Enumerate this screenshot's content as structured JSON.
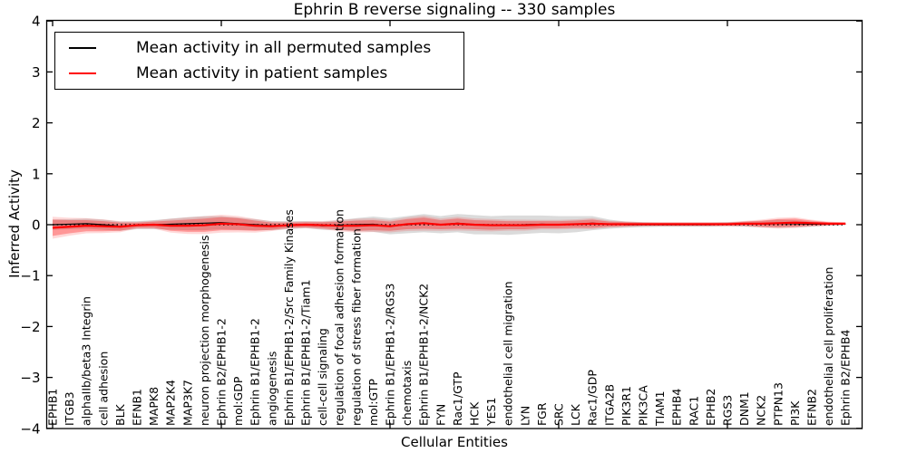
{
  "chart_data": {
    "type": "line",
    "title": "Ephrin B reverse signaling -- 330 samples",
    "xlabel": "Cellular Entities",
    "ylabel": "Inferred Activity",
    "ylim": [
      -4,
      4
    ],
    "ytick_values": [
      4,
      3,
      2,
      1,
      0,
      -1,
      -2,
      -3,
      -4
    ],
    "ytick_labels": [
      "4",
      "3",
      "2",
      "1",
      "0",
      "−1",
      "−2",
      "−3",
      "−4"
    ],
    "xtick_values": [
      0,
      10,
      20,
      30,
      40
    ],
    "grid": false,
    "legend_position": "upper left",
    "zero_line": {
      "value": 0,
      "style": "dotted",
      "color": "#000000"
    },
    "categories": [
      "EPHB1",
      "ITGB3",
      "alphaIIb/beta3 Integrin",
      "cell adhesion",
      "BLK",
      "EFNB1",
      "MAPK8",
      "MAP2K4",
      "MAP3K7",
      "neuron projection morphogenesis",
      "Ephrin B2/EPHB1-2",
      "mol:GDP",
      "Ephrin B1/EPHB1-2",
      "angiogenesis",
      "Ephrin B1/EPHB1-2/Src Family Kinases",
      "Ephrin B1/EPHB1-2/Tiam1",
      "cell-cell signaling",
      "regulation of focal adhesion formation",
      "regulation of stress fiber formation",
      "mol:GTP",
      "Ephrin B1/EPHB1-2/RGS3",
      "chemotaxis",
      "Ephrin B1/EPHB1-2/NCK2",
      "FYN",
      "Rac1/GTP",
      "HCK",
      "YES1",
      "endothelial cell migration",
      "LYN",
      "FGR",
      "SRC",
      "LCK",
      "Rac1/GDP",
      "ITGA2B",
      "PIK3R1",
      "PIK3CA",
      "TIAM1",
      "EPHB4",
      "RAC1",
      "EPHB2",
      "RGS3",
      "DNM1",
      "NCK2",
      "PTPN13",
      "PI3K",
      "EFNB2",
      "endothelial cell proliferation",
      "Ephrin B2/EPHB4"
    ],
    "series": [
      {
        "name": "Mean activity in all permuted samples",
        "color": "#000000",
        "band_color": "#000000",
        "band_opacity": 0.14,
        "line_width": 1.2,
        "mean": [
          0.0,
          0.01,
          0.02,
          0.0,
          -0.03,
          -0.01,
          0.0,
          0.01,
          0.02,
          0.03,
          0.04,
          0.02,
          0.0,
          -0.02,
          -0.01,
          0.0,
          -0.02,
          -0.01,
          0.0,
          0.01,
          -0.03,
          0.0,
          0.03,
          0.0,
          0.03,
          0.0,
          -0.01,
          -0.01,
          0.0,
          0.01,
          0.0,
          0.01,
          0.03,
          0.01,
          0.0,
          0.0,
          0.0,
          0.0,
          0.0,
          0.0,
          0.01,
          0.01,
          0.01,
          0.02,
          0.02,
          0.01,
          0.01,
          0.01
        ],
        "std": [
          0.1,
          0.1,
          0.1,
          0.1,
          0.09,
          0.08,
          0.09,
          0.11,
          0.13,
          0.14,
          0.13,
          0.12,
          0.11,
          0.09,
          0.08,
          0.07,
          0.08,
          0.1,
          0.13,
          0.15,
          0.16,
          0.17,
          0.18,
          0.17,
          0.18,
          0.19,
          0.18,
          0.19,
          0.18,
          0.17,
          0.17,
          0.16,
          0.14,
          0.09,
          0.06,
          0.05,
          0.04,
          0.04,
          0.04,
          0.04,
          0.04,
          0.05,
          0.06,
          0.08,
          0.07,
          0.05,
          0.03,
          0.02
        ]
      },
      {
        "name": "Mean activity in patient samples",
        "color": "#ff0000",
        "band_color": "#ff0000",
        "band_opacity": 0.3,
        "line_width": 2.2,
        "mean": [
          -0.06,
          -0.04,
          -0.02,
          -0.03,
          -0.04,
          -0.01,
          0.0,
          -0.02,
          -0.02,
          -0.01,
          0.02,
          0.01,
          -0.02,
          -0.03,
          -0.01,
          0.0,
          -0.01,
          -0.02,
          -0.02,
          -0.01,
          -0.03,
          0.01,
          0.03,
          0.0,
          0.02,
          0.0,
          -0.01,
          -0.01,
          -0.01,
          0.0,
          0.0,
          0.01,
          0.02,
          0.01,
          0.01,
          0.01,
          0.01,
          0.01,
          0.01,
          0.01,
          0.01,
          0.02,
          0.02,
          0.03,
          0.04,
          0.03,
          0.02,
          0.02
        ],
        "std": [
          0.16,
          0.13,
          0.11,
          0.1,
          0.08,
          0.05,
          0.06,
          0.1,
          0.12,
          0.13,
          0.13,
          0.12,
          0.1,
          0.07,
          0.05,
          0.05,
          0.06,
          0.08,
          0.1,
          0.1,
          0.09,
          0.1,
          0.11,
          0.09,
          0.1,
          0.09,
          0.09,
          0.08,
          0.08,
          0.07,
          0.07,
          0.07,
          0.08,
          0.05,
          0.04,
          0.03,
          0.03,
          0.03,
          0.03,
          0.03,
          0.03,
          0.04,
          0.06,
          0.08,
          0.08,
          0.05,
          0.03,
          0.02
        ]
      }
    ]
  }
}
